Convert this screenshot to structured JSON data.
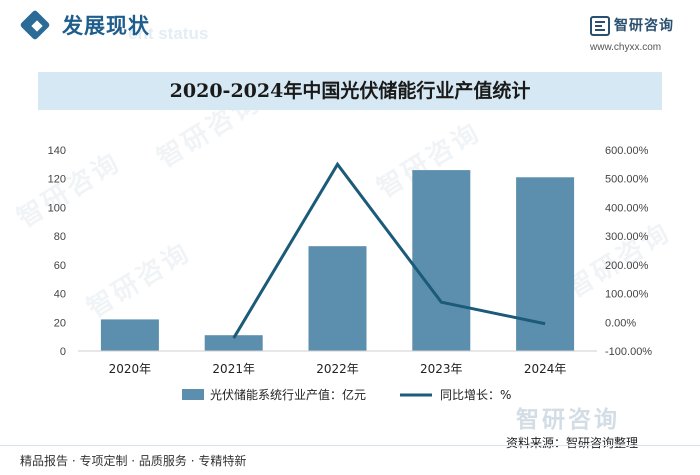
{
  "header": {
    "section_title": "发展现状",
    "section_subtitle": "ent status"
  },
  "brand": {
    "name": "智研咨询",
    "url": "www.chyxx.com",
    "watermark": "智研咨询"
  },
  "footer": {
    "services": "精品报告 · 专项定制 · 品质服务 · 专精特新",
    "source": "资料来源：智研咨询整理"
  },
  "colors": {
    "bar": "#5b8fad",
    "line": "#1c5a7a",
    "title_band": "#d6e8f4",
    "accent": "#1f5d8c"
  },
  "chart_data": {
    "type": "bar",
    "title": "2020-2024年中国光伏储能行业产值统计",
    "categories": [
      "2020年",
      "2021年",
      "2022年",
      "2023年",
      "2024年"
    ],
    "y_left": {
      "ticks": [
        "0",
        "20",
        "40",
        "60",
        "80",
        "100",
        "120",
        "140"
      ],
      "ylim": [
        0,
        140
      ]
    },
    "y_right": {
      "ticks": [
        "-100.00%",
        "0.00%",
        "100.00%",
        "200.00%",
        "300.00%",
        "400.00%",
        "500.00%",
        "600.00%"
      ],
      "ylim": [
        -100,
        600
      ]
    },
    "series": [
      {
        "name": "光伏储能系统行业产值：亿元",
        "type": "bar",
        "axis": "left",
        "values": [
          22,
          11,
          73,
          126,
          121
        ]
      },
      {
        "name": "同比增长：%",
        "type": "line",
        "axis": "right",
        "values": [
          null,
          -55,
          550,
          70,
          -5
        ]
      }
    ],
    "legend_position": "bottom",
    "grid": false
  }
}
